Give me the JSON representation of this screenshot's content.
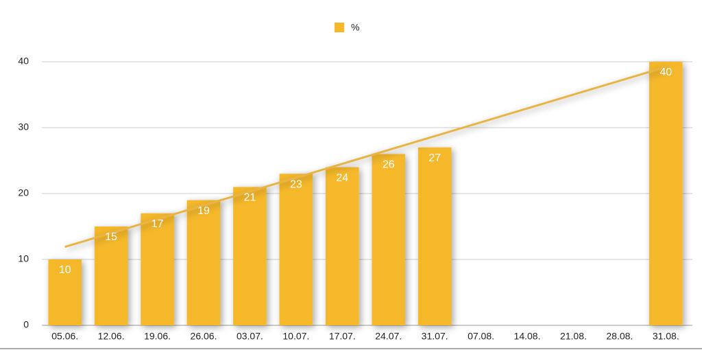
{
  "chart_data": {
    "type": "bar",
    "legend": "top",
    "categories": [
      "05.06.",
      "12.06.",
      "19.06.",
      "26.06.",
      "03.07.",
      "10.07.",
      "17.07.",
      "24.07.",
      "31.07.",
      "07.08.",
      "14.08.",
      "21.08.",
      "28.08.",
      "31.08."
    ],
    "series": [
      {
        "name": "%",
        "color": "#f5b82a",
        "values": [
          10,
          15,
          17,
          19,
          21,
          23,
          24,
          26,
          27,
          null,
          null,
          null,
          null,
          40
        ]
      }
    ],
    "trendline": "linear",
    "trendline_color": "#e9b444",
    "ylim": [
      0,
      40
    ],
    "yticks": [
      0,
      10,
      20,
      30,
      40
    ],
    "grid": true
  }
}
